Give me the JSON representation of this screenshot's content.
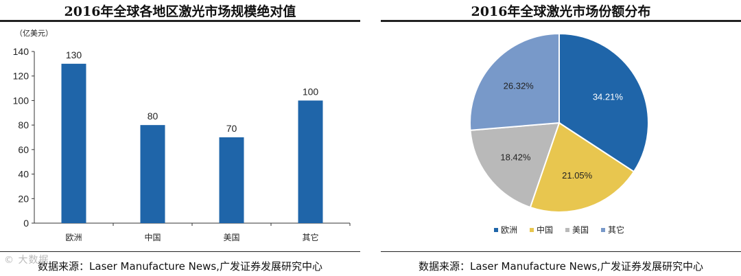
{
  "left": {
    "title": "2016年全球各地区激光市场规模绝对值",
    "source": "数据来源：Laser Manufacture News,广发证券发展研究中心",
    "chart_data": {
      "type": "bar",
      "title": "2016年全球各地区激光市场规模绝对值",
      "ylabel": "（亿美元）",
      "categories": [
        "欧洲",
        "中国",
        "美国",
        "其它"
      ],
      "values": [
        130,
        80,
        70,
        100
      ],
      "ylim": [
        0,
        140
      ],
      "yticks": [
        0,
        20,
        40,
        60,
        80,
        100,
        120,
        140
      ],
      "bar_color": "#1f65a9",
      "grid": false
    }
  },
  "right": {
    "title": "2016年全球激光市场份额分布",
    "source": "数据来源：Laser Manufacture News,广发证券发展研究中心",
    "chart_data": {
      "type": "pie",
      "title": "2016年全球激光市场份额分布",
      "labels": [
        "欧洲",
        "中国",
        "美国",
        "其它"
      ],
      "values": [
        34.21,
        21.05,
        18.42,
        26.32
      ],
      "value_labels": [
        "34.21%",
        "21.05%",
        "18.42%",
        "26.32%"
      ],
      "colors": [
        "#1f65a9",
        "#e8c64f",
        "#b9b9b9",
        "#7899c9"
      ],
      "legend_position": "bottom"
    }
  },
  "watermark": "© 大数据"
}
